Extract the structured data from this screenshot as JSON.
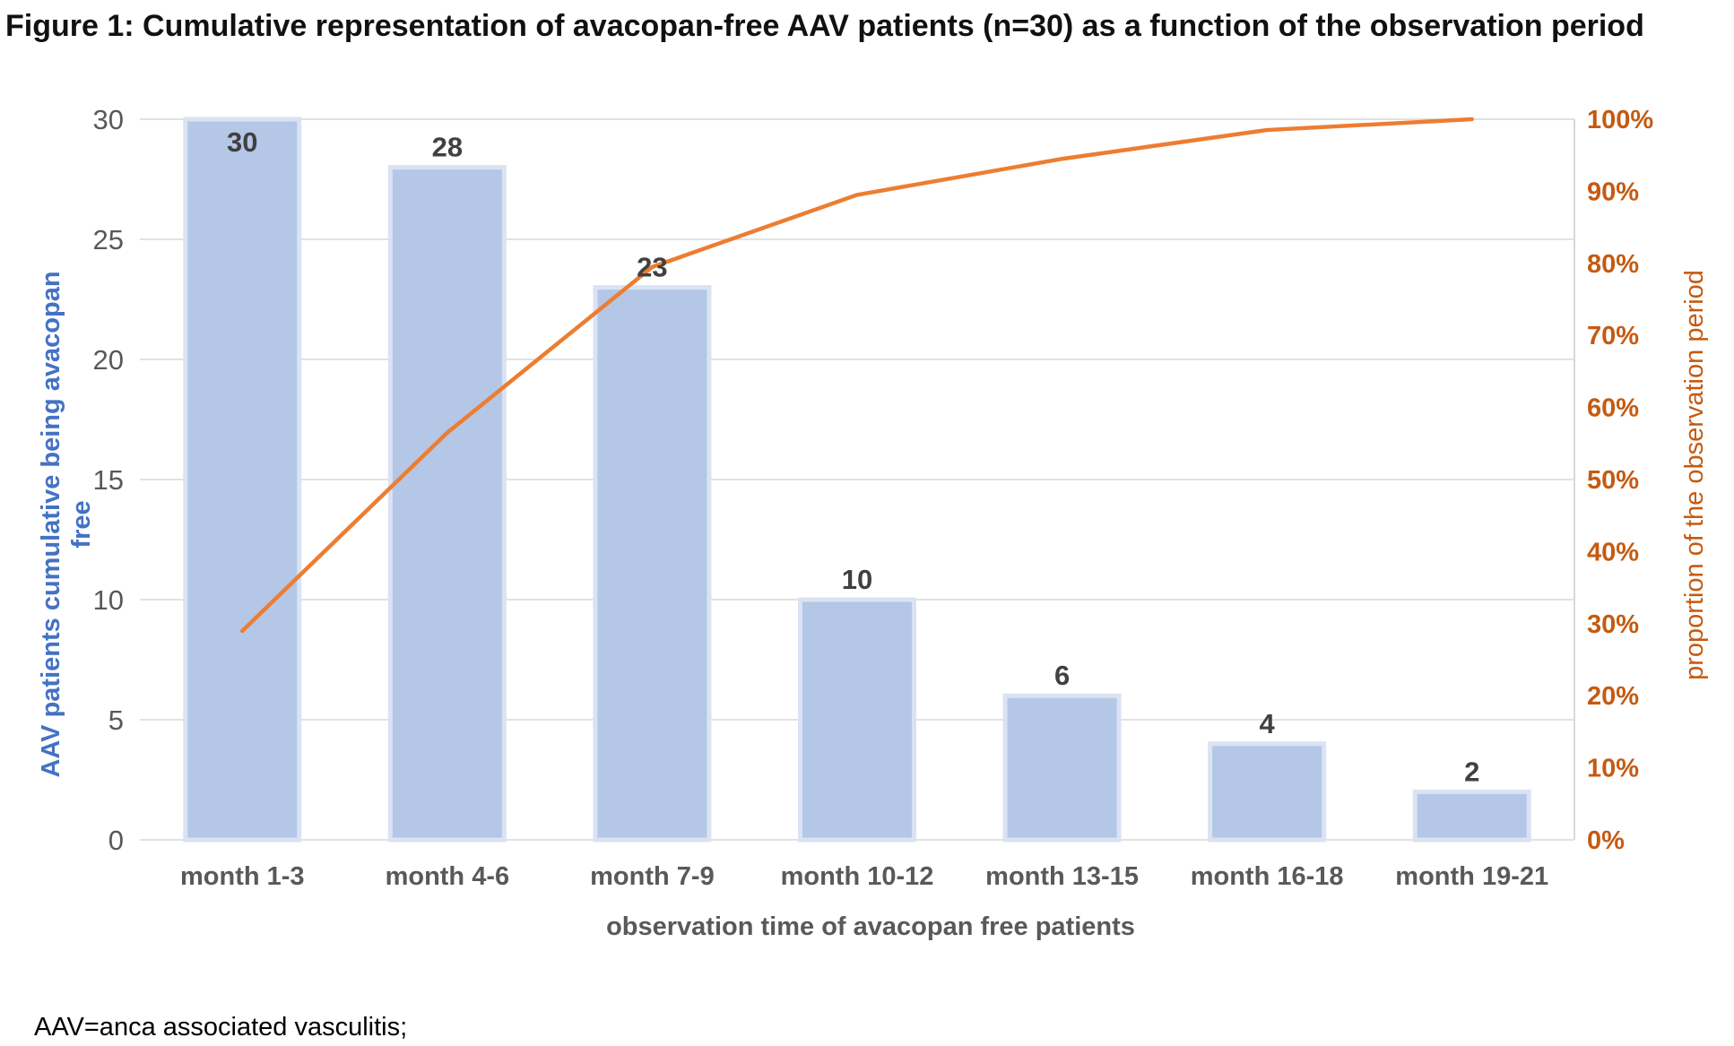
{
  "figure": {
    "title": "Figure 1: Cumulative representation of avacopan-free AAV patients (n=30) as a function of the observation period",
    "footnote": "AAV=anca associated vasculitis;"
  },
  "colors": {
    "bar_fill": "#b4c7e7",
    "bar_stroke": "#dae3f3",
    "line": "#ed7d31",
    "right_axis_text": "#c55a11",
    "left_axis_title": "#4472c4",
    "gridline": "#d9d9d9"
  },
  "chart_data": {
    "type": "bar",
    "title": "Figure 1: Cumulative representation of avacopan-free AAV patients (n=30) as a function of the observation period",
    "xlabel": "observation time of avacopan free patients",
    "ylabel": "AAV patients cumulative being avacopan free",
    "y2label": "proportion of the observation period",
    "categories": [
      "month 1-3",
      "month 4-6",
      "month 7-9",
      "month 10-12",
      "month 13-15",
      "month 16-18",
      "month 19-21"
    ],
    "series": [
      {
        "type": "bar",
        "axis": "left",
        "values": [
          30,
          28,
          23,
          10,
          6,
          4,
          2
        ],
        "data_labels": [
          "30",
          "28",
          "23",
          "10",
          "6",
          "4",
          "2"
        ]
      },
      {
        "type": "line",
        "axis": "right",
        "values": [
          0.29,
          0.565,
          0.795,
          0.895,
          0.945,
          0.985,
          1.0
        ]
      }
    ],
    "ylim": [
      0,
      30
    ],
    "y_ticks": [
      "0",
      "5",
      "10",
      "15",
      "20",
      "25",
      "30"
    ],
    "y2lim": [
      0,
      1
    ],
    "y2_ticks": [
      "0%",
      "10%",
      "20%",
      "30%",
      "40%",
      "50%",
      "60%",
      "70%",
      "80%",
      "90%",
      "100%"
    ],
    "grid": true,
    "legend": "none"
  }
}
